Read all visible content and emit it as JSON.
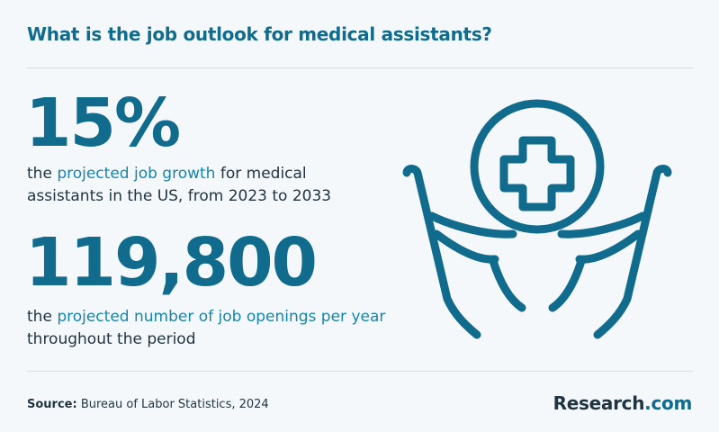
{
  "title": "What is the job outlook for medical assistants?",
  "stats": [
    {
      "value": "15%",
      "desc_before": "the ",
      "desc_highlight": "projected job growth",
      "desc_after": " for medical assistants in the US, from 2023 to 2033"
    },
    {
      "value": "119,800",
      "desc_before": "the ",
      "desc_highlight": "projected number of job openings per year",
      "desc_after": " throughout the period"
    }
  ],
  "footer": {
    "source_label": "Source:",
    "source_text": " Bureau of Labor Statistics, 2024",
    "brand_name": "Research",
    "brand_tld": ".com"
  },
  "icons": {
    "illustration": "hands-holding-medical-cross-icon"
  },
  "colors": {
    "accent": "#106b8c",
    "highlight": "#1685ad",
    "text": "#1f3340",
    "background": "#f5f8fa"
  }
}
